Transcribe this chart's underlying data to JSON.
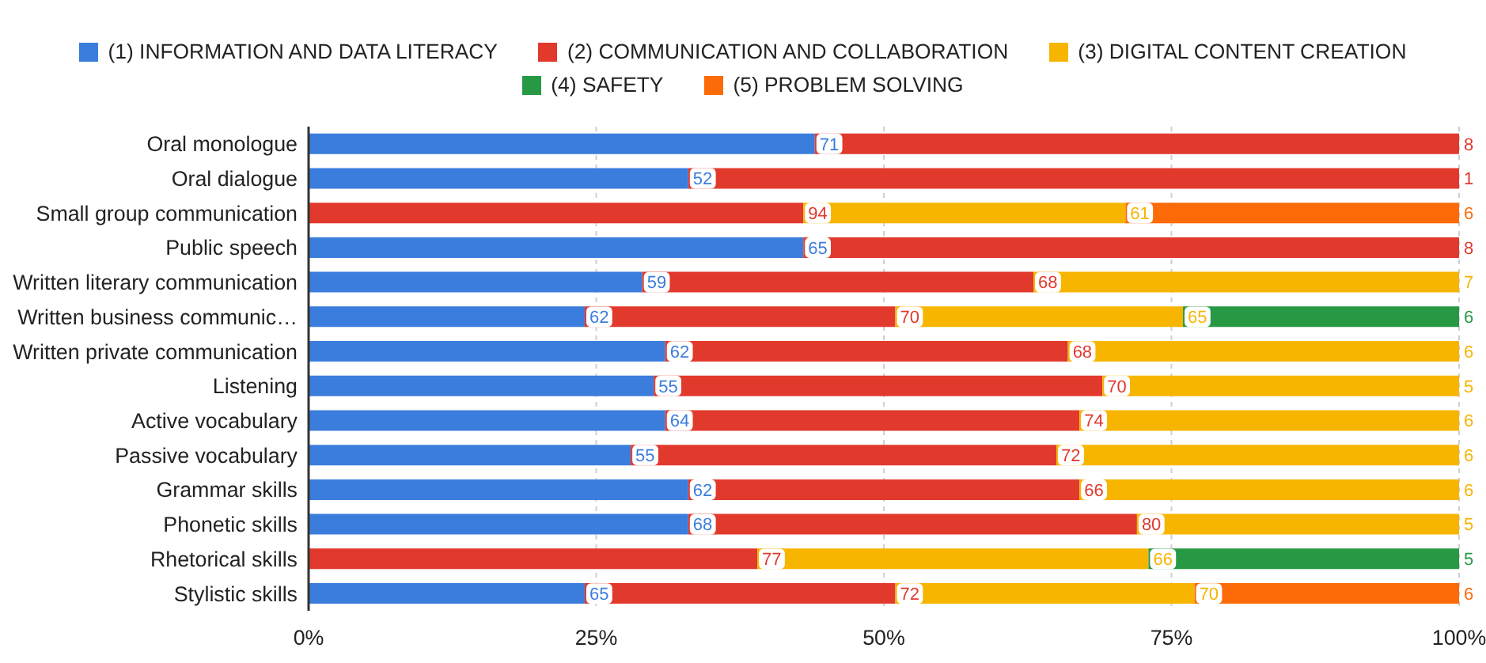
{
  "chart_data": {
    "type": "bar",
    "orientation": "horizontal",
    "stacked": true,
    "categories": [
      "Oral monologue",
      "Oral dialogue",
      "Small group communication",
      "Public speech",
      "Written literary communication",
      "Written business communic…",
      "Written private communication",
      "Listening",
      "Active vocabulary",
      "Passive vocabulary",
      "Grammar skills",
      "Phonetic skills",
      "Rhetorical skills",
      "Stylistic skills"
    ],
    "series": [
      {
        "name": "(1) INFORMATION AND DATA LITERACY",
        "color": "#3b7ddd",
        "values": [
          44,
          33,
          null,
          43,
          29,
          24,
          31,
          30,
          31,
          28,
          33,
          33,
          null,
          24
        ]
      },
      {
        "name": "(2) COMMUNICATION AND COLLABORATION",
        "color": "#e2392d",
        "values": [
          56,
          67,
          43,
          57,
          34,
          27,
          35,
          39,
          36,
          37,
          34,
          39,
          39,
          27
        ]
      },
      {
        "name": "(3) DIGITAL CONTENT CREATION",
        "color": "#f7b500",
        "values": [
          null,
          null,
          28,
          null,
          37,
          25,
          34,
          31,
          33,
          35,
          33,
          28,
          34,
          26
        ]
      },
      {
        "name": "(4) SAFETY",
        "color": "#279944",
        "values": [
          null,
          null,
          null,
          null,
          null,
          24,
          null,
          null,
          null,
          null,
          null,
          null,
          27,
          null
        ]
      },
      {
        "name": "(5) PROBLEM SOLVING",
        "color": "#fd6a08",
        "values": [
          null,
          null,
          29,
          null,
          null,
          null,
          null,
          null,
          null,
          null,
          null,
          null,
          null,
          23
        ]
      }
    ],
    "annotations": [
      {
        "text": "71",
        "x": 44,
        "y": "Oral monologue"
      },
      {
        "text": "8",
        "x": 100,
        "y": "Oral monologue"
      },
      {
        "text": "52",
        "x": 33,
        "y": "Oral dialogue"
      },
      {
        "text": "1",
        "x": 100,
        "y": "Oral dialogue"
      },
      {
        "text": "94",
        "x": 43,
        "y": "Small group communication"
      },
      {
        "text": "61",
        "x": 71,
        "y": "Small group communication"
      },
      {
        "text": "6",
        "x": 100,
        "y": "Small group communication"
      },
      {
        "text": "65",
        "x": 43,
        "y": "Public speech"
      },
      {
        "text": "8",
        "x": 100,
        "y": "Public speech"
      },
      {
        "text": "59",
        "x": 29,
        "y": "Written literary communication"
      },
      {
        "text": "68",
        "x": 63,
        "y": "Written literary communication"
      },
      {
        "text": "7",
        "x": 100,
        "y": "Written literary communication"
      },
      {
        "text": "62",
        "x": 24,
        "y": "Written business communic…"
      },
      {
        "text": "70",
        "x": 51,
        "y": "Written business communic…"
      },
      {
        "text": "65",
        "x": 76,
        "y": "Written business communic…"
      },
      {
        "text": "6",
        "x": 100,
        "y": "Written business communic…"
      },
      {
        "text": "62",
        "x": 31,
        "y": "Written private communication"
      },
      {
        "text": "68",
        "x": 66,
        "y": "Written private communication"
      },
      {
        "text": "6",
        "x": 100,
        "y": "Written private communication"
      },
      {
        "text": "55",
        "x": 30,
        "y": "Listening"
      },
      {
        "text": "70",
        "x": 69,
        "y": "Listening"
      },
      {
        "text": "5",
        "x": 100,
        "y": "Listening"
      },
      {
        "text": "64",
        "x": 31,
        "y": "Active vocabulary"
      },
      {
        "text": "74",
        "x": 67,
        "y": "Active vocabulary"
      },
      {
        "text": "6",
        "x": 100,
        "y": "Active vocabulary"
      },
      {
        "text": "55",
        "x": 28,
        "y": "Passive vocabulary"
      },
      {
        "text": "72",
        "x": 65,
        "y": "Passive vocabulary"
      },
      {
        "text": "6",
        "x": 100,
        "y": "Passive vocabulary"
      },
      {
        "text": "62",
        "x": 33,
        "y": "Grammar skills"
      },
      {
        "text": "66",
        "x": 67,
        "y": "Grammar skills"
      },
      {
        "text": "6",
        "x": 100,
        "y": "Grammar skills"
      },
      {
        "text": "68",
        "x": 33,
        "y": "Phonetic skills"
      },
      {
        "text": "80",
        "x": 72,
        "y": "Phonetic skills"
      },
      {
        "text": "5",
        "x": 100,
        "y": "Phonetic skills"
      },
      {
        "text": "77",
        "x": 39,
        "y": "Rhetorical skills"
      },
      {
        "text": "66",
        "x": 73,
        "y": "Rhetorical skills"
      },
      {
        "text": "5",
        "x": 100,
        "y": "Rhetorical skills"
      },
      {
        "text": "65",
        "x": 24,
        "y": "Stylistic skills"
      },
      {
        "text": "72",
        "x": 51,
        "y": "Stylistic skills"
      },
      {
        "text": "70",
        "x": 77,
        "y": "Stylistic skills"
      },
      {
        "text": "6",
        "x": 100,
        "y": "Stylistic skills"
      }
    ],
    "xlim": [
      0,
      100
    ],
    "xticks": [
      {
        "value": 0,
        "label": "0%"
      },
      {
        "value": 25,
        "label": "25%"
      },
      {
        "value": 50,
        "label": "50%"
      },
      {
        "value": 75,
        "label": "75%"
      },
      {
        "value": 100,
        "label": "100%"
      }
    ],
    "grid": "x",
    "legend": "top"
  }
}
